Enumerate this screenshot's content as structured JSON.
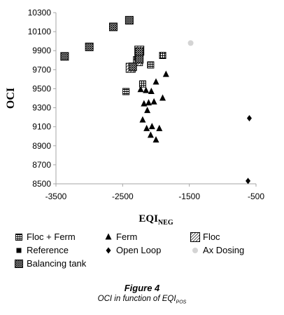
{
  "chart_data": {
    "type": "scatter",
    "xlabel": "EQI",
    "xlabel_sub": "NEG",
    "ylabel": "OCI",
    "xlim": [
      -3500,
      -500
    ],
    "ylim": [
      8500,
      10300
    ],
    "xticks": [
      -3500,
      -2500,
      -1500,
      -500
    ],
    "yticks": [
      8500,
      8700,
      8900,
      9100,
      9300,
      9500,
      9700,
      9900,
      10100,
      10300
    ],
    "grid": false,
    "legend_position": "bottom",
    "series": [
      {
        "name": "Floc + Ferm",
        "marker": "square-grid",
        "points": [
          {
            "x": -1900,
            "y": 9850
          },
          {
            "x": -2080,
            "y": 9750
          },
          {
            "x": -2200,
            "y": 9550
          },
          {
            "x": -2450,
            "y": 9470
          }
        ]
      },
      {
        "name": "Ferm",
        "marker": "triangle",
        "points": [
          {
            "x": -1850,
            "y": 9650
          },
          {
            "x": -2000,
            "y": 9570
          },
          {
            "x": -2230,
            "y": 9490
          },
          {
            "x": -2150,
            "y": 9480
          },
          {
            "x": -2070,
            "y": 9470
          },
          {
            "x": -1900,
            "y": 9400
          },
          {
            "x": -2030,
            "y": 9360
          },
          {
            "x": -2180,
            "y": 9340
          },
          {
            "x": -2110,
            "y": 9350
          },
          {
            "x": -2130,
            "y": 9270
          },
          {
            "x": -2200,
            "y": 9170
          },
          {
            "x": -2060,
            "y": 9100
          },
          {
            "x": -2140,
            "y": 9080
          },
          {
            "x": -1950,
            "y": 9080
          },
          {
            "x": -2080,
            "y": 9010
          },
          {
            "x": -2000,
            "y": 8960
          }
        ]
      },
      {
        "name": "Floc",
        "marker": "square-hatch",
        "points": [
          {
            "x": -2250,
            "y": 9900
          },
          {
            "x": -2270,
            "y": 9790
          },
          {
            "x": -2380,
            "y": 9720
          }
        ]
      },
      {
        "name": "Reference",
        "marker": "square-filled",
        "points": [
          {
            "x": -2290,
            "y": 9820
          }
        ]
      },
      {
        "name": "Open Loop",
        "marker": "diamond",
        "points": [
          {
            "x": -600,
            "y": 9190
          },
          {
            "x": -620,
            "y": 8530
          }
        ]
      },
      {
        "name": "Ax Dosing",
        "marker": "circle",
        "points": [
          {
            "x": -1480,
            "y": 9980
          }
        ]
      },
      {
        "name": "Balancing tank",
        "marker": "square-cross",
        "points": [
          {
            "x": -2400,
            "y": 10220
          },
          {
            "x": -2640,
            "y": 10150
          },
          {
            "x": -3000,
            "y": 9940
          },
          {
            "x": -3370,
            "y": 9840
          },
          {
            "x": -2250,
            "y": 9890
          },
          {
            "x": -2250,
            "y": 9810
          },
          {
            "x": -2350,
            "y": 9730
          }
        ]
      }
    ]
  },
  "figure_caption": {
    "title": "Figure 4",
    "text": "OCI in function of EQI",
    "text_sub": "POS"
  },
  "colors": {
    "axis": "#a6a6a6",
    "marker": "#000000",
    "ax_dosing": "#d4d4d4"
  }
}
